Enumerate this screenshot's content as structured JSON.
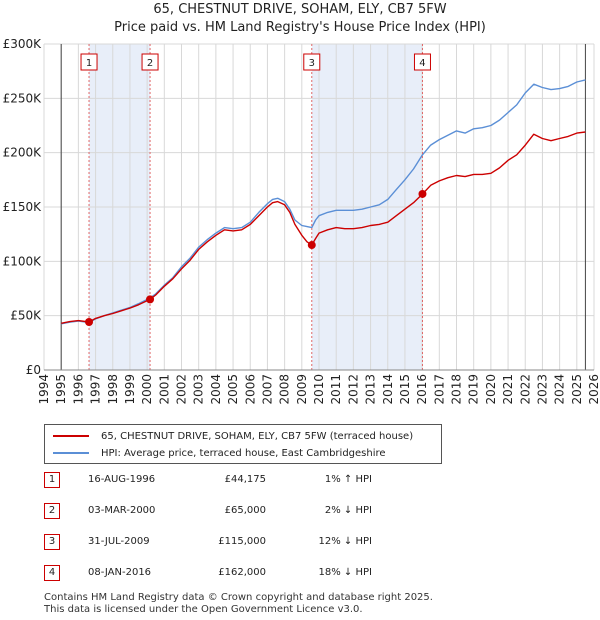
{
  "chart_data": {
    "type": "line",
    "title": "65, CHESTNUT DRIVE, SOHAM, ELY, CB7 5FW",
    "subtitle": "Price paid vs. HM Land Registry's House Price Index (HPI)",
    "xlim": [
      1994,
      2026
    ],
    "ylim": [
      0,
      300000
    ],
    "x_ticks": [
      "1994",
      "1995",
      "1996",
      "1997",
      "1998",
      "1999",
      "2000",
      "2001",
      "2002",
      "2003",
      "2004",
      "2005",
      "2006",
      "2007",
      "2008",
      "2009",
      "2010",
      "2011",
      "2012",
      "2013",
      "2014",
      "2015",
      "2016",
      "2017",
      "2018",
      "2019",
      "2020",
      "2021",
      "2022",
      "2023",
      "2024",
      "2025",
      "2026"
    ],
    "y_ticks": [
      {
        "value": 0,
        "label": "£0"
      },
      {
        "value": 50000,
        "label": "£50K"
      },
      {
        "value": 100000,
        "label": "£100K"
      },
      {
        "value": 150000,
        "label": "£150K"
      },
      {
        "value": 200000,
        "label": "£200K"
      },
      {
        "value": 250000,
        "label": "£250K"
      },
      {
        "value": 300000,
        "label": "£300K"
      }
    ],
    "data_range": [
      1995.0,
      2025.5
    ],
    "shaded_spans": [
      [
        1996.62,
        2000.17
      ],
      [
        2009.58,
        2016.02
      ]
    ],
    "series": [
      {
        "name": "65, CHESTNUT DRIVE, SOHAM, ELY, CB7 5FW (terraced house)",
        "color": "#cc0000",
        "x": [
          1995.0,
          1995.5,
          1996.0,
          1996.62,
          1997.0,
          1997.5,
          1998.0,
          1998.5,
          1999.0,
          1999.5,
          2000.17,
          2000.5,
          2001.0,
          2001.5,
          2002.0,
          2002.5,
          2003.0,
          2003.5,
          2004.0,
          2004.5,
          2005.0,
          2005.5,
          2006.0,
          2006.5,
          2007.0,
          2007.3,
          2007.6,
          2008.0,
          2008.3,
          2008.6,
          2009.0,
          2009.3,
          2009.58,
          2009.8,
          2010.0,
          2010.5,
          2011.0,
          2011.5,
          2012.0,
          2012.5,
          2013.0,
          2013.5,
          2014.0,
          2014.5,
          2015.0,
          2015.5,
          2016.02,
          2016.5,
          2017.0,
          2017.5,
          2018.0,
          2018.5,
          2019.0,
          2019.5,
          2020.0,
          2020.5,
          2021.0,
          2021.5,
          2022.0,
          2022.5,
          2023.0,
          2023.5,
          2024.0,
          2024.5,
          2025.0,
          2025.5
        ],
        "y": [
          43000,
          44500,
          45500,
          44175,
          47500,
          50000,
          52000,
          54500,
          57000,
          60000,
          65000,
          69000,
          77000,
          84000,
          93000,
          101000,
          111000,
          118000,
          124000,
          129000,
          128000,
          129000,
          134000,
          142000,
          150000,
          154000,
          155000,
          152000,
          145000,
          134000,
          124000,
          118000,
          115000,
          121000,
          126000,
          129000,
          131000,
          130000,
          130000,
          131000,
          133000,
          134000,
          136000,
          142000,
          148000,
          154000,
          162000,
          170000,
          174000,
          177000,
          179000,
          178000,
          180000,
          180000,
          181000,
          186000,
          193000,
          198000,
          207000,
          217000,
          213000,
          211000,
          213000,
          215000,
          218000,
          219000
        ]
      },
      {
        "name": "HPI: Average price, terraced house, East Cambridgeshire",
        "color": "#5b8fd6",
        "x": [
          1995.0,
          1995.5,
          1996.0,
          1996.62,
          1997.0,
          1997.5,
          1998.0,
          1998.5,
          1999.0,
          1999.5,
          2000.17,
          2000.5,
          2001.0,
          2001.5,
          2002.0,
          2002.5,
          2003.0,
          2003.5,
          2004.0,
          2004.5,
          2005.0,
          2005.5,
          2006.0,
          2006.5,
          2007.0,
          2007.3,
          2007.6,
          2008.0,
          2008.3,
          2008.6,
          2009.0,
          2009.3,
          2009.58,
          2009.8,
          2010.0,
          2010.5,
          2011.0,
          2011.5,
          2012.0,
          2012.5,
          2013.0,
          2013.5,
          2014.0,
          2014.5,
          2015.0,
          2015.5,
          2016.02,
          2016.5,
          2017.0,
          2017.5,
          2018.0,
          2018.5,
          2019.0,
          2019.5,
          2020.0,
          2020.5,
          2021.0,
          2021.5,
          2022.0,
          2022.5,
          2023.0,
          2023.5,
          2024.0,
          2024.5,
          2025.0,
          2025.5
        ],
        "y": [
          42500,
          44000,
          45000,
          43700,
          47000,
          50000,
          52500,
          55000,
          57500,
          61000,
          66300,
          70000,
          78000,
          85000,
          95000,
          103000,
          113000,
          120000,
          126000,
          131000,
          130000,
          131000,
          136000,
          145000,
          153000,
          157000,
          158000,
          155000,
          148000,
          138000,
          133000,
          132000,
          131000,
          138000,
          142000,
          145000,
          147000,
          147000,
          147000,
          148000,
          150000,
          152000,
          157000,
          166000,
          175000,
          185000,
          198000,
          207000,
          212000,
          216000,
          220000,
          218000,
          222000,
          223000,
          225000,
          230000,
          237000,
          244000,
          255000,
          263000,
          260000,
          258000,
          259000,
          261000,
          265000,
          267000
        ]
      }
    ],
    "markers": [
      {
        "label": "1",
        "x": 1996.62,
        "y": 44175
      },
      {
        "label": "2",
        "x": 2000.17,
        "y": 65000
      },
      {
        "label": "3",
        "x": 2009.58,
        "y": 115000
      },
      {
        "label": "4",
        "x": 2016.02,
        "y": 162000
      }
    ]
  },
  "legend": {
    "property_label": "65, CHESTNUT DRIVE, SOHAM, ELY, CB7 5FW (terraced house)",
    "hpi_label": "HPI: Average price, terraced house, East Cambridgeshire"
  },
  "transactions": [
    {
      "num": "1",
      "date": "16-AUG-1996",
      "price": "£44,175",
      "hpi": "1% ↑ HPI"
    },
    {
      "num": "2",
      "date": "03-MAR-2000",
      "price": "£65,000",
      "hpi": "2% ↓ HPI"
    },
    {
      "num": "3",
      "date": "31-JUL-2009",
      "price": "£115,000",
      "hpi": "12% ↓ HPI"
    },
    {
      "num": "4",
      "date": "08-JAN-2016",
      "price": "£162,000",
      "hpi": "18% ↓ HPI"
    }
  ],
  "footer": {
    "line1": "Contains HM Land Registry data © Crown copyright and database right 2025.",
    "line2": "This data is licensed under the Open Government Licence v3.0."
  },
  "colors": {
    "property_line": "#cc0000",
    "hpi_line": "#5b8fd6",
    "shade": "#e8eef9",
    "marker_box": "#cc0000"
  }
}
